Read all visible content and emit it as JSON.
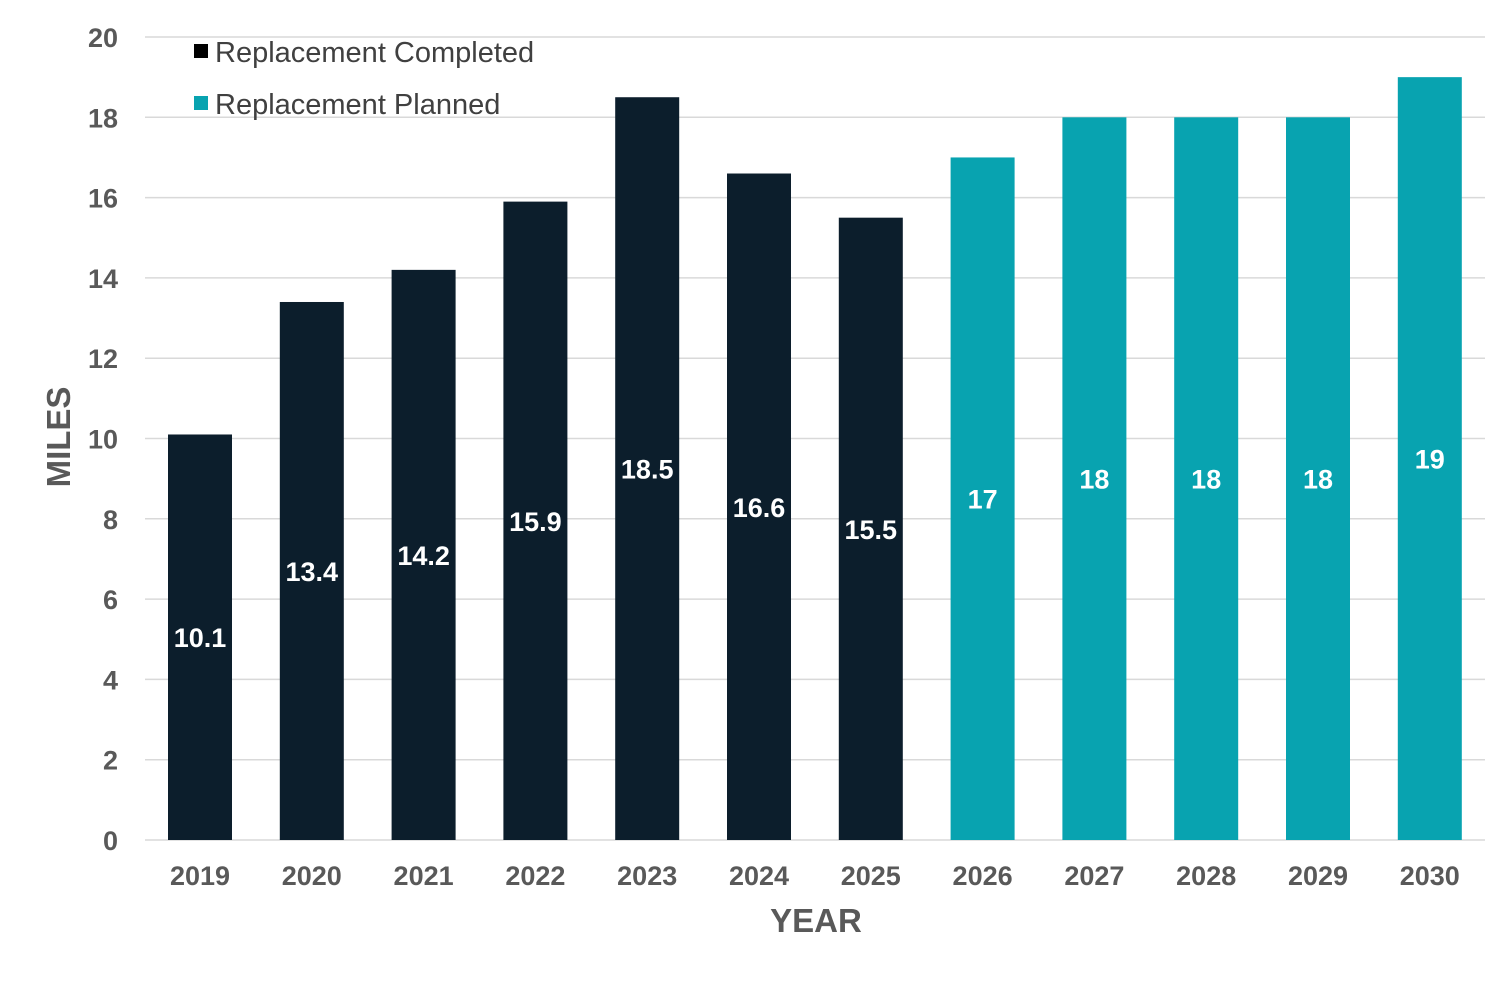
{
  "chart_data": {
    "type": "bar",
    "title": "",
    "xlabel": "YEAR",
    "ylabel": "MILES",
    "ylim": [
      0,
      20
    ],
    "yticks": [
      0,
      2,
      4,
      6,
      8,
      10,
      12,
      14,
      16,
      18,
      20
    ],
    "grid": true,
    "legend_position": "top-left",
    "categories": [
      "2019",
      "2020",
      "2021",
      "2022",
      "2023",
      "2024",
      "2025",
      "2026",
      "2027",
      "2028",
      "2029",
      "2030"
    ],
    "series": [
      {
        "name": "Replacement Completed",
        "color": "#0c1e2c",
        "values": [
          10.1,
          13.4,
          14.2,
          15.9,
          18.5,
          16.6,
          15.5,
          null,
          null,
          null,
          null,
          null
        ],
        "labels": [
          "10.1",
          "13.4",
          "14.2",
          "15.9",
          "18.5",
          "16.6",
          "15.5",
          "",
          "",
          "",
          "",
          ""
        ]
      },
      {
        "name": "Replacement Planned",
        "color": "#08a3b0",
        "values": [
          null,
          null,
          null,
          null,
          null,
          null,
          null,
          17,
          18,
          18,
          18,
          19
        ],
        "labels": [
          "",
          "",
          "",
          "",
          "",
          "",
          "",
          "17",
          "18",
          "18",
          "18",
          "19"
        ]
      }
    ]
  }
}
